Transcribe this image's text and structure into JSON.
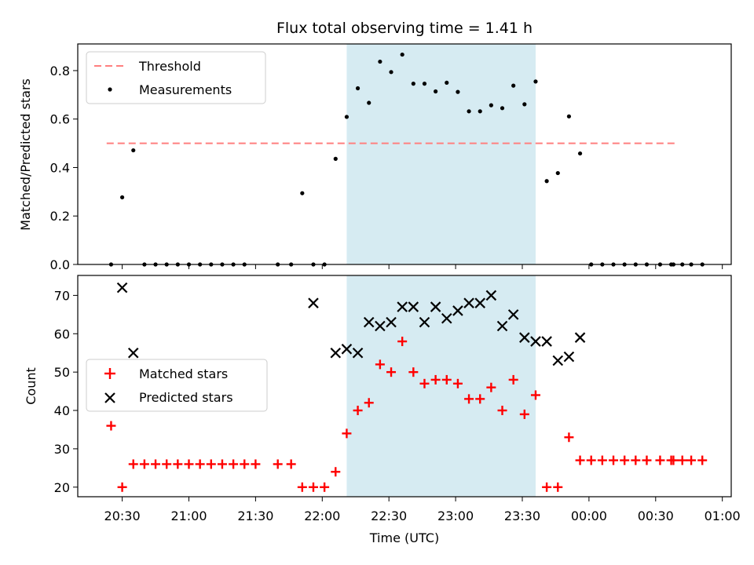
{
  "chart_data": [
    {
      "type": "scatter",
      "title": "Flux total observing time = 1.41 h",
      "xlabel": "",
      "ylabel": "Matched/Predicted stars",
      "xlim_minutes": [
        1210,
        1504
      ],
      "ylim": [
        0,
        0.91
      ],
      "yticks": [
        0,
        0.2,
        0.4,
        0.6,
        0.8
      ],
      "ytick_labels": [
        "0.0",
        "0.2",
        "0.4",
        "0.6",
        "0.8"
      ],
      "legend_position": "upper-left",
      "highlight_span_minutes": [
        1331,
        1416
      ],
      "threshold": {
        "name": "Threshold",
        "color": "#ff7f7f",
        "value": 0.5,
        "x_range_minutes": [
          1223,
          1480
        ]
      },
      "series": [
        {
          "name": "Measurements",
          "color": "#000000",
          "x_minutes": [
            1225,
            1230,
            1235,
            1240,
            1245,
            1250,
            1255,
            1260,
            1265,
            1270,
            1275,
            1280,
            1285,
            1300,
            1306,
            1311,
            1316,
            1321,
            1326,
            1331,
            1336,
            1341,
            1346,
            1351,
            1356,
            1361,
            1366,
            1371,
            1376,
            1381,
            1386,
            1391,
            1396,
            1401,
            1406,
            1411,
            1416,
            1421,
            1426,
            1431,
            1436,
            1441,
            1446,
            1451,
            1456,
            1461,
            1466,
            1472,
            1477,
            1478,
            1482,
            1486,
            1491
          ],
          "values": [
            0,
            0.277,
            0.471,
            0,
            0,
            0,
            0,
            0,
            0,
            0,
            0,
            0,
            0,
            0,
            0,
            0.294,
            0,
            0,
            0.436,
            0.609,
            0.727,
            0.667,
            0.837,
            0.794,
            0.866,
            0.746,
            0.746,
            0.714,
            0.75,
            0.712,
            0.632,
            0.632,
            0.657,
            0.645,
            0.738,
            0.661,
            0.755,
            0.344,
            0.377,
            0.611,
            0.458,
            0,
            0,
            0,
            0,
            0,
            0,
            0,
            0,
            0,
            0,
            0,
            0
          ]
        }
      ]
    },
    {
      "type": "scatter",
      "title": "",
      "xlabel": "Time (UTC)",
      "ylabel": "Count",
      "xlim_minutes": [
        1210,
        1504
      ],
      "ylim": [
        17.5,
        75.2
      ],
      "yticks": [
        20,
        30,
        40,
        50,
        60,
        70
      ],
      "ytick_labels": [
        "20",
        "30",
        "40",
        "50",
        "60",
        "70"
      ],
      "xticks_minutes": [
        1230,
        1260,
        1290,
        1320,
        1350,
        1380,
        1410,
        1440,
        1470,
        1500
      ],
      "xtick_labels": [
        "20:30",
        "21:00",
        "21:30",
        "22:00",
        "22:30",
        "23:00",
        "23:30",
        "00:00",
        "00:30",
        "01:00"
      ],
      "legend_position": "center-left",
      "highlight_span_minutes": [
        1331,
        1416
      ],
      "series": [
        {
          "name": "Matched stars",
          "marker": "plus",
          "color": "#ff0000",
          "x_minutes": [
            1225,
            1230,
            1235,
            1240,
            1245,
            1250,
            1255,
            1260,
            1265,
            1270,
            1275,
            1280,
            1285,
            1290,
            1300,
            1306,
            1311,
            1316,
            1321,
            1326,
            1331,
            1336,
            1341,
            1346,
            1351,
            1356,
            1361,
            1366,
            1371,
            1376,
            1381,
            1386,
            1391,
            1396,
            1401,
            1406,
            1411,
            1416,
            1421,
            1426,
            1431,
            1436,
            1441,
            1446,
            1451,
            1456,
            1461,
            1466,
            1472,
            1477,
            1478,
            1482,
            1486,
            1491
          ],
          "values": [
            36,
            20,
            26,
            26,
            26,
            26,
            26,
            26,
            26,
            26,
            26,
            26,
            26,
            26,
            26,
            26,
            20,
            20,
            20,
            24,
            34,
            40,
            42,
            52,
            50,
            58,
            50,
            47,
            48,
            48,
            47,
            43,
            43,
            46,
            40,
            48,
            39,
            44,
            20,
            20,
            33,
            27,
            27,
            27,
            27,
            27,
            27,
            27,
            27,
            27,
            27,
            27,
            27,
            27
          ]
        },
        {
          "name": "Predicted stars",
          "marker": "x",
          "color": "#000000",
          "x_minutes": [
            1230,
            1235,
            1316,
            1326,
            1331,
            1336,
            1341,
            1346,
            1351,
            1356,
            1361,
            1366,
            1371,
            1376,
            1381,
            1386,
            1391,
            1396,
            1401,
            1406,
            1411,
            1416,
            1421,
            1426,
            1431,
            1436
          ],
          "values": [
            72,
            55,
            68,
            55,
            56,
            55,
            63,
            62,
            63,
            67,
            67,
            63,
            67,
            64,
            66,
            68,
            68,
            70,
            62,
            65,
            59,
            58,
            58,
            53,
            54,
            59
          ]
        }
      ]
    }
  ]
}
